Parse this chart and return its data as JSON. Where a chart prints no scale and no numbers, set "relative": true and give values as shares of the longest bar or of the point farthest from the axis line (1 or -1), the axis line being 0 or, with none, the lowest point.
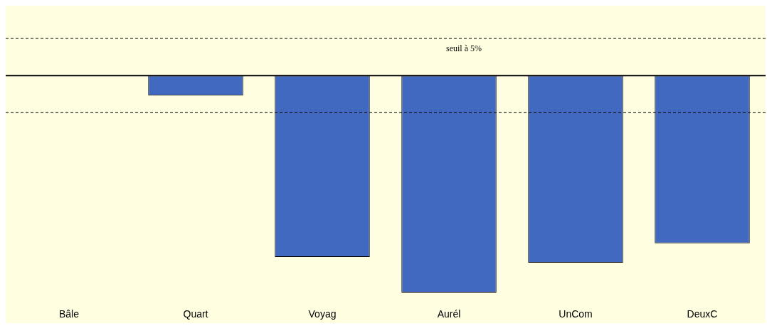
{
  "chart_data": {
    "type": "bar",
    "relative": true,
    "categories": [
      "Bâle",
      "Quart",
      "Voyag",
      "Aurél",
      "UnCom",
      "DeuxC"
    ],
    "values": [
      0,
      -0.092,
      -0.836,
      -1,
      -0.862,
      -0.773
    ],
    "color": "#4169c0",
    "ref_lines": [
      {
        "axis": "y",
        "value": 0.171,
        "label": "seuil à 5%",
        "line_style": "dashed"
      },
      {
        "axis": "y",
        "value": -0.171,
        "line_style": "dashed"
      }
    ],
    "grid": false,
    "legend": false
  }
}
